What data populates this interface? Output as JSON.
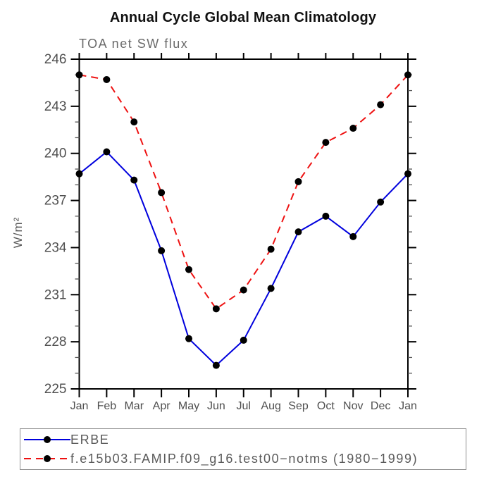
{
  "chart_data": {
    "type": "line",
    "title": "Annual Cycle Global Mean Climatology",
    "subtitle": "TOA net SW flux",
    "ylabel": "W/m²",
    "xlabel": "",
    "x_categories": [
      "Jan",
      "Feb",
      "Mar",
      "Apr",
      "May",
      "Jun",
      "Jul",
      "Aug",
      "Sep",
      "Oct",
      "Nov",
      "Dec",
      "Jan"
    ],
    "ylim": [
      225,
      246
    ],
    "yticks_major": [
      225,
      228,
      231,
      234,
      237,
      240,
      243,
      246
    ],
    "ytick_minor_step": 1,
    "grid": false,
    "frame": "box",
    "legend_position": "bottom-left-box",
    "axis_color": "#000000",
    "tick_label_color": "#4f4f4f",
    "series": [
      {
        "name": "ERBE",
        "color": "#0000dd",
        "style": "solid",
        "marker": "circle",
        "marker_color": "#000000",
        "values": [
          238.7,
          240.1,
          238.3,
          233.8,
          228.2,
          226.5,
          228.1,
          231.4,
          235.0,
          236.0,
          234.7,
          236.9,
          238.7
        ]
      },
      {
        "name": "f.e15b03.FAMIP.f09_g16.test00−notms (1980−1999)",
        "color": "#ee1111",
        "style": "dashed",
        "marker": "circle",
        "marker_color": "#000000",
        "values": [
          245.0,
          244.7,
          242.0,
          237.5,
          232.6,
          230.1,
          231.3,
          233.9,
          238.2,
          240.7,
          241.6,
          243.1,
          245.0
        ]
      }
    ]
  }
}
